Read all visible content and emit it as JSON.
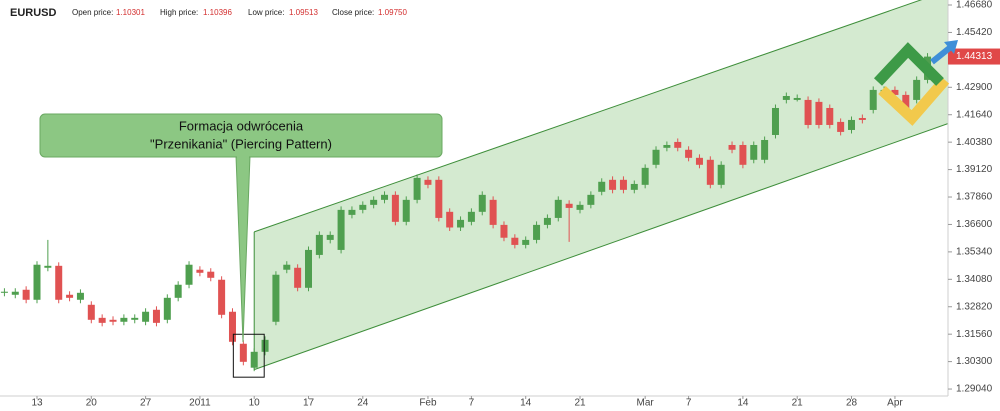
{
  "header": {
    "symbol": "EURUSD",
    "fields": [
      {
        "label": "Open price:",
        "value": "1.10301"
      },
      {
        "label": "High price:",
        "value": "1.10396"
      },
      {
        "label": "Low price:",
        "value": "1.09513"
      },
      {
        "label": "Close price:",
        "value": "1.09750"
      }
    ]
  },
  "chart_data": {
    "type": "candlestick",
    "categories": [
      null,
      null,
      null,
      "13",
      null,
      null,
      null,
      null,
      "20",
      null,
      null,
      null,
      null,
      "27",
      null,
      null,
      null,
      null,
      "2011",
      null,
      null,
      null,
      null,
      "10",
      null,
      null,
      null,
      null,
      "17",
      null,
      null,
      null,
      null,
      "24",
      null,
      null,
      null,
      null,
      null,
      "Feb",
      null,
      null,
      null,
      "7",
      null,
      null,
      null,
      null,
      "14",
      null,
      null,
      null,
      null,
      "21",
      null,
      null,
      null,
      null,
      null,
      "Mar",
      null,
      null,
      null,
      "7",
      null,
      null,
      null,
      null,
      "14",
      null,
      null,
      null,
      null,
      "21",
      null,
      null,
      null,
      null,
      "28",
      null,
      null,
      null,
      "Apr",
      null,
      null,
      null
    ],
    "series": [
      {
        "open": [
          1.3346,
          1.3337,
          1.336,
          1.3314,
          1.3461,
          1.347,
          1.3337,
          1.3314,
          1.3291,
          1.3231,
          1.3222,
          1.3213,
          1.3222,
          1.3213,
          1.3268,
          1.3222,
          1.3323,
          1.3383,
          1.3452,
          1.3443,
          1.3406,
          1.3259,
          1.3112,
          1.3002,
          1.3075,
          1.3213,
          1.3452,
          1.3461,
          1.3369,
          1.352,
          1.3589,
          1.3543,
          1.3704,
          1.3727,
          1.375,
          1.3773,
          1.3796,
          1.3672,
          1.3773,
          1.3865,
          1.3865,
          1.3718,
          1.3646,
          1.3672,
          1.3718,
          1.3773,
          1.3658,
          1.3599,
          1.3566,
          1.3589,
          1.3658,
          1.369,
          1.3755,
          1.3727,
          1.375,
          1.381,
          1.3865,
          1.3865,
          1.3819,
          1.3842,
          1.3934,
          1.4012,
          1.4039,
          1.4003,
          1.3966,
          1.3957,
          1.3842,
          1.4025,
          1.4025,
          1.3957,
          1.3957,
          1.4071,
          1.4232,
          1.4232,
          1.4232,
          1.4223,
          1.4195,
          1.4131,
          1.4094,
          1.4149,
          1.4186,
          1.4255,
          1.4278,
          1.4255,
          1.4232,
          1.4324
        ],
        "high": [
          1.3367,
          1.3367,
          1.3376,
          1.3491,
          1.3589,
          1.3486,
          1.3353,
          1.3362,
          1.3307,
          1.3247,
          1.3238,
          1.3247,
          1.3247,
          1.3275,
          1.3284,
          1.3339,
          1.3399,
          1.3491,
          1.3468,
          1.3459,
          1.3422,
          1.3275,
          1.3128,
          1.3091,
          1.3146,
          1.3445,
          1.3491,
          1.3477,
          1.3559,
          1.3628,
          1.3628,
          1.3743,
          1.3743,
          1.3766,
          1.3789,
          1.3812,
          1.3812,
          1.3789,
          1.389,
          1.3881,
          1.3881,
          1.3734,
          1.3697,
          1.3734,
          1.3812,
          1.3789,
          1.3674,
          1.3615,
          1.3605,
          1.3674,
          1.3706,
          1.3789,
          1.3771,
          1.3766,
          1.3812,
          1.3872,
          1.3881,
          1.3881,
          1.3862,
          1.3936,
          1.4019,
          1.4041,
          1.4055,
          1.4019,
          1.3982,
          1.3973,
          1.395,
          1.4041,
          1.4041,
          1.4041,
          1.4064,
          1.4211,
          1.4266,
          1.4257,
          1.4248,
          1.4239,
          1.4211,
          1.4147,
          1.4156,
          1.4165,
          1.4294,
          1.4294,
          1.4294,
          1.4271,
          1.434,
          1.4447
        ],
        "low": [
          1.333,
          1.3321,
          1.3298,
          1.3298,
          1.3445,
          1.3298,
          1.3307,
          1.3298,
          1.3206,
          1.3192,
          1.3197,
          1.3197,
          1.3206,
          1.3197,
          1.3192,
          1.3206,
          1.3307,
          1.3367,
          1.3422,
          1.3399,
          1.3229,
          1.3105,
          1.3013,
          1.2986,
          1.3059,
          1.3197,
          1.3436,
          1.3353,
          1.3353,
          1.3504,
          1.3573,
          1.3527,
          1.3688,
          1.3711,
          1.3734,
          1.3757,
          1.3656,
          1.3656,
          1.3757,
          1.3826,
          1.3674,
          1.363,
          1.363,
          1.3656,
          1.3702,
          1.3642,
          1.3583,
          1.355,
          1.355,
          1.3573,
          1.3642,
          1.3674,
          1.358,
          1.3711,
          1.3734,
          1.3794,
          1.3803,
          1.3803,
          1.3803,
          1.3826,
          1.3918,
          1.3996,
          1.3996,
          1.395,
          1.3918,
          1.3826,
          1.3826,
          1.3987,
          1.3918,
          1.3941,
          1.3941,
          1.4055,
          1.4216,
          1.4225,
          1.4101,
          1.4101,
          1.4101,
          1.4069,
          1.4078,
          1.4124,
          1.417,
          1.4239,
          1.4239,
          1.417,
          1.4216,
          1.4308
        ],
        "close": [
          1.3351,
          1.3351,
          1.3314,
          1.3475,
          1.347,
          1.3314,
          1.3323,
          1.3346,
          1.3222,
          1.3208,
          1.3213,
          1.3231,
          1.3231,
          1.3259,
          1.3208,
          1.3323,
          1.3383,
          1.3475,
          1.3438,
          1.3415,
          1.3245,
          1.3121,
          1.3029,
          1.3075,
          1.313,
          1.3429,
          1.3475,
          1.3369,
          1.3543,
          1.3612,
          1.3612,
          1.3727,
          1.3727,
          1.375,
          1.3773,
          1.3796,
          1.3672,
          1.3773,
          1.3874,
          1.3842,
          1.369,
          1.3646,
          1.3681,
          1.3718,
          1.3796,
          1.3658,
          1.3599,
          1.3566,
          1.3589,
          1.3658,
          1.369,
          1.3773,
          1.3736,
          1.375,
          1.3796,
          1.3856,
          1.3819,
          1.3819,
          1.3846,
          1.392,
          1.4003,
          1.4025,
          1.4012,
          1.3966,
          1.3934,
          1.3842,
          1.3934,
          1.4003,
          1.3934,
          1.4025,
          1.4048,
          1.4195,
          1.425,
          1.4241,
          1.4117,
          1.4117,
          1.4117,
          1.4085,
          1.414,
          1.414,
          1.4278,
          1.4278,
          1.4255,
          1.4186,
          1.4324,
          1.4431
        ]
      }
    ],
    "up_color": "#4f9f4f",
    "down_color": "#e05252",
    "ylim": [
      1.2872,
      1.4691
    ],
    "yticks": [
      {
        "value": 1.4668,
        "label": "1.46680"
      },
      {
        "value": 1.4542,
        "label": "1.45420"
      },
      {
        "value": 1.429,
        "label": "1.42900"
      },
      {
        "value": 1.4164,
        "label": "1.41640"
      },
      {
        "value": 1.4038,
        "label": "1.40380"
      },
      {
        "value": 1.3912,
        "label": "1.39120"
      },
      {
        "value": 1.3786,
        "label": "1.37860"
      },
      {
        "value": 1.366,
        "label": "1.36600"
      },
      {
        "value": 1.3534,
        "label": "1.35340"
      },
      {
        "value": 1.3408,
        "label": "1.34080"
      },
      {
        "value": 1.3282,
        "label": "1.32820"
      },
      {
        "value": 1.3156,
        "label": "1.31560"
      },
      {
        "value": 1.303,
        "label": "1.30300"
      },
      {
        "value": 1.2904,
        "label": "1.29040"
      }
    ],
    "last_price": {
      "value": 1.44313,
      "label": "1.44313"
    },
    "channel": {
      "from": 23,
      "to": 85,
      "upper": [
        1.3626,
        1.4702
      ],
      "lower": [
        1.2993,
        1.409
      ]
    },
    "pattern_candles": [
      22,
      23
    ],
    "annotation": [
      "Formacja odwrócenia",
      "\"Przenikania\" (Piercing Pattern)"
    ]
  }
}
